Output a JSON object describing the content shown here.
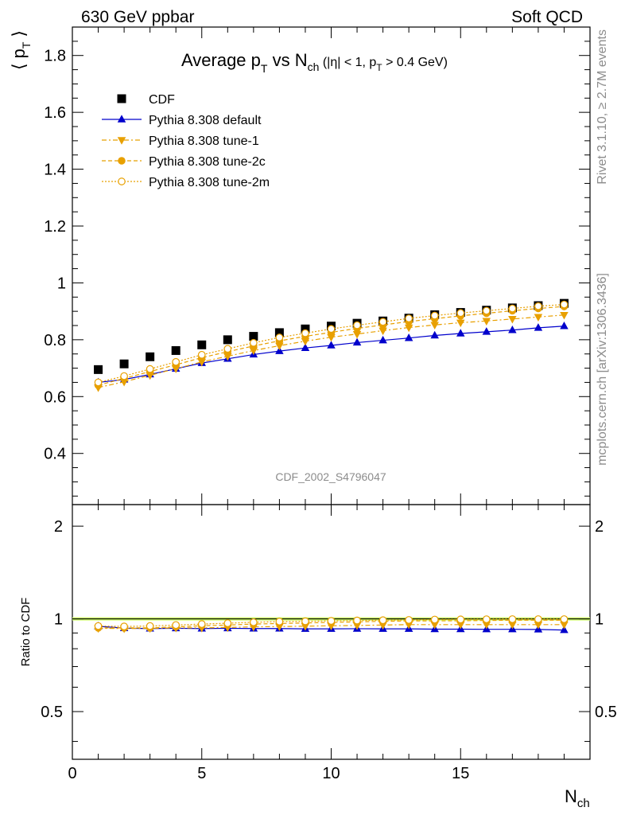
{
  "header": {
    "left": "630 GeV ppbar",
    "right": "Soft QCD"
  },
  "side_labels": {
    "rivet": "Rivet 3.1.10, ≥ 2.7M events",
    "mcplots": "mcplots.cern.ch [arXiv:1306.3436]"
  },
  "watermark": "CDF_2002_S4796047",
  "colors": {
    "cdf": "#000000",
    "default": "#0000cc",
    "tunes": "#e8a000",
    "ratio_band": "#ccff66"
  },
  "chart_data": [
    {
      "type": "scatter",
      "panel": "main",
      "title": "Average p_T vs N_ch (|η| < 1, p_T > 0.4 GeV)",
      "title_parts": {
        "main": "Average p",
        "main_sub": "T",
        "vs": " vs N",
        "vs_sub": "ch",
        "cuts_a": " (|η| < 1, p",
        "cuts_sub": "T",
        "cuts_b": " > 0.4 GeV)"
      },
      "ylabel": "⟨ p_T ⟩",
      "ylabel_parts": {
        "left": "⟨",
        "p": "p",
        "sub": "T",
        "right": "⟩"
      },
      "xlim": [
        0,
        20
      ],
      "ylim": [
        0.22,
        1.9
      ],
      "y_ticks": [
        "0.4",
        "0.6",
        "0.8",
        "1",
        "1.2",
        "1.4",
        "1.6",
        "1.8"
      ],
      "legend_position": "top-left",
      "x": [
        1,
        2,
        3,
        4,
        5,
        6,
        7,
        8,
        9,
        10,
        11,
        12,
        13,
        14,
        15,
        16,
        17,
        18,
        19
      ],
      "series": [
        {
          "name": "CDF",
          "style": "square",
          "values": [
            0.695,
            0.715,
            0.74,
            0.762,
            0.782,
            0.8,
            0.812,
            0.825,
            0.838,
            0.848,
            0.858,
            0.866,
            0.876,
            0.888,
            0.896,
            0.904,
            0.912,
            0.92,
            0.928
          ]
        },
        {
          "name": "Pythia 8.308 default",
          "style": "triangle-up",
          "values": [
            0.65,
            0.66,
            0.678,
            0.698,
            0.718,
            0.733,
            0.748,
            0.76,
            0.771,
            0.78,
            0.79,
            0.798,
            0.806,
            0.815,
            0.822,
            0.828,
            0.834,
            0.842,
            0.848
          ]
        },
        {
          "name": "Pythia 8.308 tune-1",
          "style": "triangle-down",
          "values": [
            0.632,
            0.652,
            0.675,
            0.698,
            0.722,
            0.742,
            0.762,
            0.779,
            0.795,
            0.809,
            0.82,
            0.832,
            0.843,
            0.852,
            0.86,
            0.866,
            0.873,
            0.88,
            0.887
          ]
        },
        {
          "name": "Pythia 8.308 tune-2c",
          "style": "circle-filled",
          "values": [
            0.64,
            0.664,
            0.688,
            0.712,
            0.737,
            0.758,
            0.778,
            0.796,
            0.812,
            0.826,
            0.84,
            0.852,
            0.864,
            0.874,
            0.884,
            0.893,
            0.902,
            0.91,
            0.917
          ]
        },
        {
          "name": "Pythia 8.308 tune-2m",
          "style": "circle-open",
          "values": [
            0.65,
            0.672,
            0.697,
            0.722,
            0.747,
            0.768,
            0.789,
            0.808,
            0.823,
            0.838,
            0.851,
            0.863,
            0.875,
            0.885,
            0.894,
            0.902,
            0.91,
            0.918,
            0.924
          ]
        }
      ]
    },
    {
      "type": "scatter",
      "panel": "ratio",
      "ylabel": "Ratio to CDF",
      "xlabel": "N_ch",
      "xlabel_parts": {
        "main": "N",
        "sub": "ch"
      },
      "xlim": [
        0,
        20
      ],
      "ylim": [
        0.35,
        2.35
      ],
      "y_scale": "log",
      "x_ticks": [
        "0",
        "5",
        "10",
        "15"
      ],
      "y_ticks": [
        "0.5",
        "1",
        "2"
      ],
      "x": [
        1,
        2,
        3,
        4,
        5,
        6,
        7,
        8,
        9,
        10,
        11,
        12,
        13,
        14,
        15,
        16,
        17,
        18,
        19
      ],
      "series": [
        {
          "name": "Pythia 8.308 default",
          "style": "triangle-up",
          "values": [
            0.946,
            0.933,
            0.93,
            0.932,
            0.93,
            0.932,
            0.93,
            0.93,
            0.928,
            0.928,
            0.929,
            0.928,
            0.928,
            0.926,
            0.926,
            0.925,
            0.925,
            0.924,
            0.92
          ]
        },
        {
          "name": "Pythia 8.308 tune-1",
          "style": "triangle-down",
          "values": [
            0.932,
            0.93,
            0.932,
            0.935,
            0.935,
            0.938,
            0.942,
            0.944,
            0.947,
            0.95,
            0.952,
            0.955,
            0.958,
            0.958,
            0.958,
            0.958,
            0.958,
            0.958,
            0.958
          ]
        },
        {
          "name": "Pythia 8.308 tune-2c",
          "style": "circle-filled",
          "values": [
            0.935,
            0.935,
            0.935,
            0.942,
            0.95,
            0.955,
            0.962,
            0.966,
            0.97,
            0.974,
            0.978,
            0.982,
            0.985,
            0.985,
            0.986,
            0.988,
            0.99,
            0.99,
            0.99
          ]
        },
        {
          "name": "Pythia 8.308 tune-2m",
          "style": "circle-open",
          "values": [
            0.948,
            0.945,
            0.948,
            0.955,
            0.962,
            0.968,
            0.975,
            0.98,
            0.982,
            0.985,
            0.988,
            0.99,
            0.992,
            0.995,
            0.996,
            0.997,
            0.998,
            0.998,
            0.998
          ]
        }
      ]
    }
  ]
}
